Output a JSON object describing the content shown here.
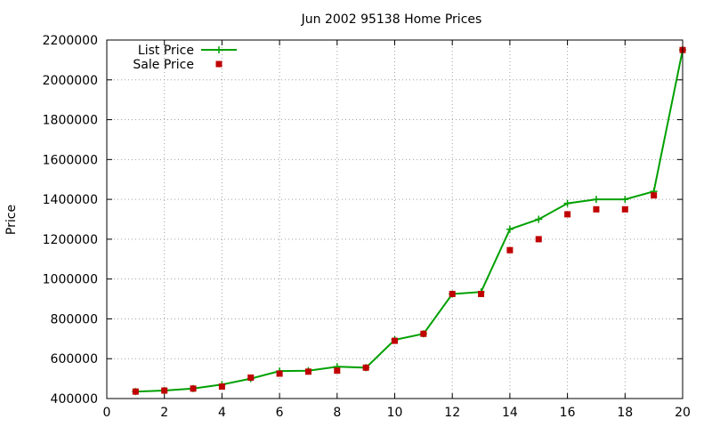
{
  "chart_data": {
    "type": "line",
    "title": "Jun 2002 95138 Home Prices",
    "xlabel": "",
    "ylabel": "Price",
    "xlim": [
      0,
      20
    ],
    "ylim": [
      400000,
      2200000
    ],
    "xticks": [
      0,
      2,
      4,
      6,
      8,
      10,
      12,
      14,
      16,
      18,
      20
    ],
    "yticks": [
      400000,
      600000,
      800000,
      1000000,
      1200000,
      1400000,
      1600000,
      1800000,
      2000000,
      2200000
    ],
    "grid": true,
    "legend_position": "top-left",
    "series": [
      {
        "name": "List Price",
        "style": "linespoints",
        "color": "#00a000",
        "marker": "plus",
        "x": [
          1,
          2,
          3,
          4,
          5,
          6,
          7,
          8,
          9,
          10,
          11,
          12,
          13,
          14,
          15,
          16,
          17,
          18,
          19,
          20
        ],
        "y": [
          435000,
          440000,
          450000,
          470000,
          500000,
          538000,
          540000,
          560000,
          555000,
          695000,
          725000,
          925000,
          935000,
          1250000,
          1300000,
          1380000,
          1400000,
          1400000,
          1440000,
          2150000
        ]
      },
      {
        "name": "Sale Price",
        "style": "points",
        "color": "#c00000",
        "marker": "square",
        "x": [
          1,
          2,
          3,
          4,
          5,
          6,
          7,
          8,
          9,
          10,
          11,
          12,
          13,
          14,
          15,
          16,
          17,
          18,
          19,
          20
        ],
        "y": [
          435000,
          440000,
          450000,
          460000,
          505000,
          525000,
          535000,
          540000,
          555000,
          690000,
          725000,
          925000,
          925000,
          1145000,
          1200000,
          1325000,
          1350000,
          1350000,
          1420000,
          2150000
        ]
      }
    ]
  }
}
